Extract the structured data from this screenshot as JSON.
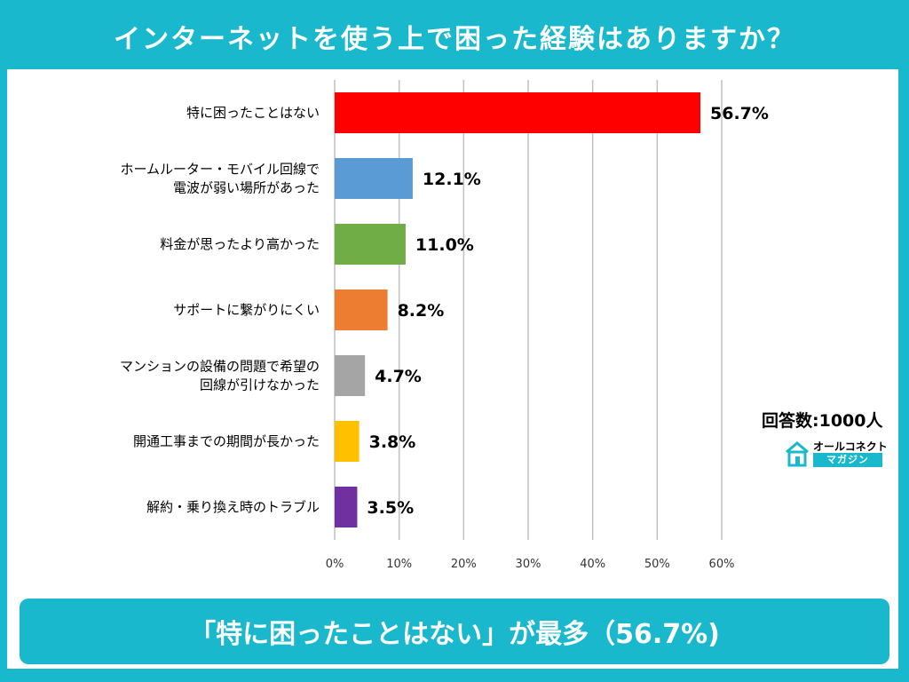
{
  "header": {
    "title": "インターネットを使う上で困った経験はありますか？"
  },
  "note": {
    "respondents": "回答数:1000人"
  },
  "logo": {
    "top_text": "オールコネクト",
    "bottom_text": "マガジン",
    "icon": "house-icon"
  },
  "banner": {
    "text": "「特に困ったことはない」が最多（56.7%)"
  },
  "chart_data": {
    "type": "bar",
    "orientation": "horizontal",
    "categories": [
      [
        "特に困ったことはない"
      ],
      [
        "ホームルーター・モバイル回線で",
        "電波が弱い場所があった"
      ],
      [
        "料金が思ったより高かった"
      ],
      [
        "サポートに繋がりにくい"
      ],
      [
        "マンションの設備の問題で希望の",
        "回線が引けなかった"
      ],
      [
        "開通工事までの期間が長かった"
      ],
      [
        "解約・乗り換え時のトラブル"
      ]
    ],
    "values": [
      56.7,
      12.1,
      11.0,
      8.2,
      4.7,
      3.8,
      3.5
    ],
    "value_labels": [
      "56.7%",
      "12.1%",
      "11.0%",
      "8.2%",
      "4.7%",
      "3.8%",
      "3.5%"
    ],
    "colors": [
      "#ff0000",
      "#5b9bd5",
      "#70ad47",
      "#ed7d31",
      "#a5a5a5",
      "#ffc000",
      "#7030a0"
    ],
    "xlim": [
      0,
      60
    ],
    "ticks": [
      0,
      10,
      20,
      30,
      40,
      50,
      60
    ],
    "tick_labels": [
      "0%",
      "10%",
      "20%",
      "30%",
      "40%",
      "50%",
      "60%"
    ],
    "grid": true,
    "gridline_color": "#c0c0c0"
  }
}
